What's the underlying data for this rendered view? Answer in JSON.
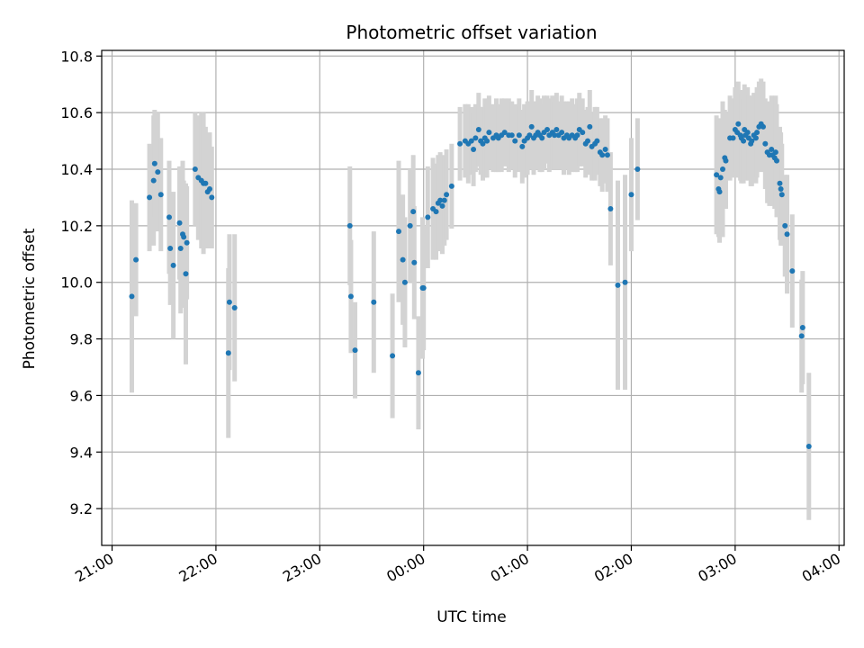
{
  "chart_data": {
    "type": "scatter",
    "title": "Photometric offset variation",
    "xlabel": "UTC time",
    "ylabel": "Photometric offset",
    "x_unit": "UTC hours (21 = 21:00, 24 = 00:00 next day)",
    "xlim": [
      20.9,
      28.05
    ],
    "ylim": [
      9.07,
      10.82
    ],
    "x_ticks": [
      21,
      22,
      23,
      24,
      25,
      26,
      27,
      28
    ],
    "x_tick_labels": [
      "21:00",
      "22:00",
      "23:00",
      "00:00",
      "01:00",
      "02:00",
      "03:00",
      "04:00"
    ],
    "y_ticks": [
      9.2,
      9.4,
      9.6,
      9.8,
      10.0,
      10.2,
      10.4,
      10.6,
      10.8
    ],
    "y_tick_labels": [
      "9.2",
      "9.4",
      "9.6",
      "9.8",
      "10.0",
      "10.2",
      "10.4",
      "10.6",
      "10.8"
    ],
    "grid": true,
    "colors": {
      "point": "#1f77b4",
      "errorbar": "#d3d3d3",
      "grid": "#b0b0b0"
    },
    "series": [
      {
        "points": [
          [
            21.19,
            9.95,
            0.34
          ],
          [
            21.23,
            10.08,
            0.2
          ],
          [
            21.36,
            10.3,
            0.19
          ],
          [
            21.4,
            10.36,
            0.23
          ],
          [
            21.41,
            10.42,
            0.19
          ],
          [
            21.44,
            10.39,
            0.21
          ],
          [
            21.47,
            10.31,
            0.2
          ],
          [
            21.55,
            10.23,
            0.2
          ],
          [
            21.56,
            10.12,
            0.2
          ],
          [
            21.59,
            10.06,
            0.26
          ],
          [
            21.65,
            10.21,
            0.2
          ],
          [
            21.66,
            10.12,
            0.23
          ],
          [
            21.68,
            10.17,
            0.26
          ],
          [
            21.69,
            10.16,
            0.2
          ],
          [
            21.71,
            10.03,
            0.32
          ],
          [
            21.72,
            10.14,
            0.2
          ],
          [
            21.8,
            10.4,
            0.2
          ],
          [
            21.83,
            10.37,
            0.22
          ],
          [
            21.86,
            10.36,
            0.24
          ],
          [
            21.88,
            10.35,
            0.25
          ],
          [
            21.9,
            10.35,
            0.2
          ],
          [
            21.92,
            10.32,
            0.2
          ],
          [
            21.94,
            10.33,
            0.2
          ],
          [
            21.96,
            10.3,
            0.18
          ],
          [
            22.12,
            9.75,
            0.3
          ],
          [
            22.13,
            9.93,
            0.24
          ],
          [
            22.18,
            9.91,
            0.26
          ],
          [
            23.29,
            10.2,
            0.21
          ],
          [
            23.3,
            9.95,
            0.2
          ],
          [
            23.34,
            9.76,
            0.17
          ],
          [
            23.52,
            9.93,
            0.25
          ],
          [
            23.7,
            9.74,
            0.22
          ],
          [
            23.76,
            10.18,
            0.25
          ],
          [
            23.8,
            10.08,
            0.23
          ],
          [
            23.82,
            10.0,
            0.23
          ],
          [
            23.87,
            10.2,
            0.2
          ],
          [
            23.9,
            10.25,
            0.2
          ],
          [
            23.91,
            10.07,
            0.2
          ],
          [
            23.95,
            9.68,
            0.2
          ],
          [
            23.99,
            9.98,
            0.25
          ],
          [
            24.0,
            9.98,
            0.22
          ],
          [
            24.04,
            10.23,
            0.18
          ],
          [
            24.09,
            10.26,
            0.18
          ],
          [
            24.12,
            10.25,
            0.17
          ],
          [
            24.14,
            10.28,
            0.17
          ],
          [
            24.16,
            10.29,
            0.17
          ],
          [
            24.18,
            10.27,
            0.17
          ],
          [
            24.2,
            10.29,
            0.16
          ],
          [
            24.22,
            10.31,
            0.16
          ],
          [
            24.27,
            10.34,
            0.15
          ],
          [
            24.35,
            10.49,
            0.13
          ],
          [
            24.4,
            10.5,
            0.13
          ],
          [
            24.43,
            10.49,
            0.14
          ],
          [
            24.46,
            10.5,
            0.12
          ],
          [
            24.48,
            10.47,
            0.13
          ],
          [
            24.5,
            10.51,
            0.12
          ],
          [
            24.53,
            10.54,
            0.13
          ],
          [
            24.55,
            10.5,
            0.12
          ],
          [
            24.57,
            10.49,
            0.13
          ],
          [
            24.59,
            10.51,
            0.14
          ],
          [
            24.61,
            10.5,
            0.13
          ],
          [
            24.63,
            10.53,
            0.13
          ],
          [
            24.67,
            10.51,
            0.12
          ],
          [
            24.7,
            10.52,
            0.13
          ],
          [
            24.72,
            10.51,
            0.12
          ],
          [
            24.75,
            10.52,
            0.13
          ],
          [
            24.78,
            10.53,
            0.12
          ],
          [
            24.82,
            10.52,
            0.13
          ],
          [
            24.85,
            10.52,
            0.12
          ],
          [
            24.88,
            10.5,
            0.13
          ],
          [
            24.92,
            10.52,
            0.13
          ],
          [
            24.95,
            10.48,
            0.13
          ],
          [
            24.97,
            10.5,
            0.13
          ],
          [
            25.0,
            10.51,
            0.13
          ],
          [
            25.02,
            10.52,
            0.12
          ],
          [
            25.04,
            10.55,
            0.13
          ],
          [
            25.06,
            10.51,
            0.13
          ],
          [
            25.08,
            10.52,
            0.12
          ],
          [
            25.1,
            10.53,
            0.13
          ],
          [
            25.12,
            10.52,
            0.13
          ],
          [
            25.14,
            10.51,
            0.12
          ],
          [
            25.16,
            10.53,
            0.13
          ],
          [
            25.19,
            10.54,
            0.12
          ],
          [
            25.21,
            10.52,
            0.13
          ],
          [
            25.24,
            10.53,
            0.13
          ],
          [
            25.26,
            10.52,
            0.12
          ],
          [
            25.28,
            10.54,
            0.13
          ],
          [
            25.3,
            10.52,
            0.12
          ],
          [
            25.33,
            10.53,
            0.13
          ],
          [
            25.35,
            10.51,
            0.13
          ],
          [
            25.38,
            10.52,
            0.12
          ],
          [
            25.4,
            10.51,
            0.13
          ],
          [
            25.43,
            10.52,
            0.13
          ],
          [
            25.46,
            10.51,
            0.12
          ],
          [
            25.48,
            10.52,
            0.13
          ],
          [
            25.5,
            10.54,
            0.13
          ],
          [
            25.53,
            10.53,
            0.12
          ],
          [
            25.56,
            10.49,
            0.12
          ],
          [
            25.58,
            10.5,
            0.12
          ],
          [
            25.6,
            10.55,
            0.13
          ],
          [
            25.62,
            10.48,
            0.12
          ],
          [
            25.65,
            10.49,
            0.13
          ],
          [
            25.67,
            10.5,
            0.12
          ],
          [
            25.7,
            10.46,
            0.12
          ],
          [
            25.72,
            10.45,
            0.13
          ],
          [
            25.75,
            10.47,
            0.12
          ],
          [
            25.77,
            10.45,
            0.13
          ],
          [
            25.8,
            10.26,
            0.2
          ],
          [
            25.87,
            9.99,
            0.37
          ],
          [
            25.94,
            10.0,
            0.38
          ],
          [
            26.0,
            10.31,
            0.2
          ],
          [
            26.06,
            10.4,
            0.18
          ],
          [
            26.82,
            10.38,
            0.21
          ],
          [
            26.84,
            10.33,
            0.17
          ],
          [
            26.85,
            10.32,
            0.18
          ],
          [
            26.86,
            10.37,
            0.21
          ],
          [
            26.88,
            10.4,
            0.24
          ],
          [
            26.9,
            10.44,
            0.17
          ],
          [
            26.91,
            10.43,
            0.17
          ],
          [
            26.95,
            10.51,
            0.15
          ],
          [
            26.98,
            10.51,
            0.14
          ],
          [
            27.0,
            10.54,
            0.15
          ],
          [
            27.02,
            10.53,
            0.16
          ],
          [
            27.03,
            10.56,
            0.15
          ],
          [
            27.05,
            10.52,
            0.16
          ],
          [
            27.06,
            10.51,
            0.16
          ],
          [
            27.08,
            10.5,
            0.15
          ],
          [
            27.09,
            10.54,
            0.16
          ],
          [
            27.1,
            10.52,
            0.16
          ],
          [
            27.12,
            10.53,
            0.16
          ],
          [
            27.13,
            10.51,
            0.15
          ],
          [
            27.15,
            10.49,
            0.15
          ],
          [
            27.16,
            10.5,
            0.16
          ],
          [
            27.18,
            10.52,
            0.15
          ],
          [
            27.2,
            10.51,
            0.16
          ],
          [
            27.21,
            10.53,
            0.16
          ],
          [
            27.23,
            10.55,
            0.16
          ],
          [
            27.25,
            10.56,
            0.16
          ],
          [
            27.27,
            10.55,
            0.16
          ],
          [
            27.29,
            10.49,
            0.16
          ],
          [
            27.31,
            10.46,
            0.18
          ],
          [
            27.33,
            10.45,
            0.18
          ],
          [
            27.35,
            10.47,
            0.19
          ],
          [
            27.36,
            10.45,
            0.18
          ],
          [
            27.38,
            10.44,
            0.18
          ],
          [
            27.39,
            10.46,
            0.2
          ],
          [
            27.4,
            10.43,
            0.2
          ],
          [
            27.43,
            10.35,
            0.2
          ],
          [
            27.44,
            10.33,
            0.2
          ],
          [
            27.45,
            10.31,
            0.18
          ],
          [
            27.48,
            10.2,
            0.18
          ],
          [
            27.5,
            10.17,
            0.21
          ],
          [
            27.55,
            10.04,
            0.2
          ],
          [
            27.64,
            9.81,
            0.2
          ],
          [
            27.65,
            9.84,
            0.2
          ],
          [
            27.71,
            9.42,
            0.26
          ]
        ]
      }
    ]
  }
}
